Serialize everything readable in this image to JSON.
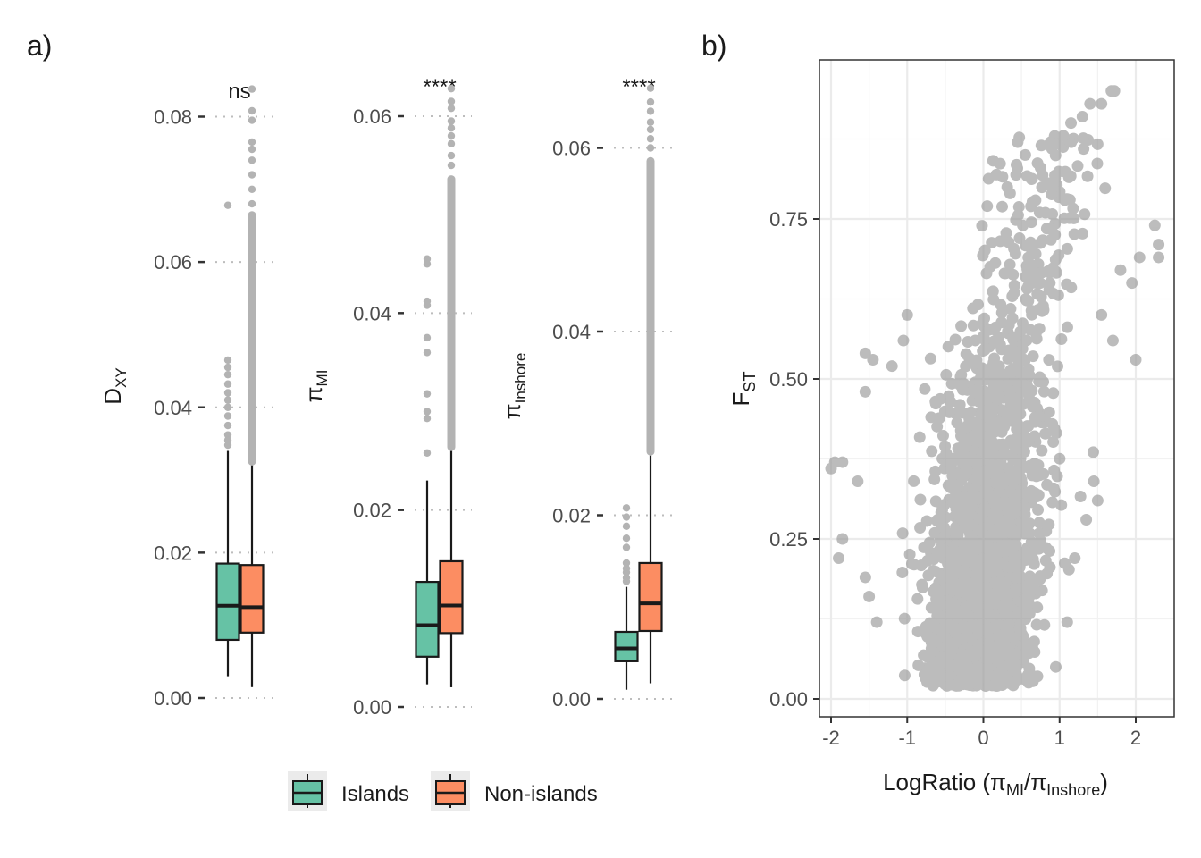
{
  "figure": {
    "panel_a_label": "a)",
    "panel_b_label": "b)"
  },
  "colors": {
    "islands": "#66c2a5",
    "non_islands": "#fc8d62",
    "outlier": "#b3b3b3",
    "scatter": "#999999",
    "grid": "#ebebeb"
  },
  "legend": {
    "items": [
      {
        "label": "Islands",
        "color": "#66c2a5"
      },
      {
        "label": "Non-islands",
        "color": "#fc8d62"
      }
    ]
  },
  "chart_data": [
    {
      "type": "box",
      "ylabel": "D",
      "ylabel_sub": "XY",
      "significance": "ns",
      "ylim": [
        0,
        0.084
      ],
      "yticks": [
        "0.00",
        "0.02",
        "0.04",
        "0.06",
        "0.08"
      ],
      "ytick_values": [
        0,
        0.02,
        0.04,
        0.06,
        0.08
      ],
      "series": [
        {
          "name": "Islands",
          "whisker_low": 0.003,
          "q1": 0.008,
          "median": 0.0127,
          "q3": 0.0185,
          "whisker_high": 0.034,
          "outliers": [
            0.0678,
            0.0465,
            0.0455,
            0.0445,
            0.0432,
            0.042,
            0.041,
            0.04,
            0.0388,
            0.0375,
            0.0362,
            0.0355,
            0.0348
          ]
        },
        {
          "name": "Non-islands",
          "whisker_low": 0.0015,
          "q1": 0.009,
          "median": 0.0125,
          "q3": 0.0183,
          "whisker_high": 0.032,
          "outliers": [
            0.0838,
            0.0808,
            0.0795,
            0.0765,
            0.0755,
            0.074,
            0.072,
            0.07,
            0.068
          ],
          "outlier_band": [
            0.032,
            0.067
          ]
        }
      ]
    },
    {
      "type": "box",
      "ylabel": "π",
      "ylabel_sub": "MI",
      "significance": "****",
      "ylim": [
        0,
        0.0605
      ],
      "yticks": [
        "0.00",
        "0.02",
        "0.04",
        "0.06"
      ],
      "ytick_values": [
        0,
        0.02,
        0.04,
        0.06
      ],
      "series": [
        {
          "name": "Islands",
          "whisker_low": 0.0023,
          "q1": 0.0051,
          "median": 0.0083,
          "q3": 0.0127,
          "whisker_high": 0.023,
          "outliers": [
            0.0455,
            0.045,
            0.0412,
            0.0408,
            0.0375,
            0.036,
            0.0318,
            0.03,
            0.0293,
            0.0258
          ]
        },
        {
          "name": "Non-islands",
          "whisker_low": 0.002,
          "q1": 0.0075,
          "median": 0.0103,
          "q3": 0.0148,
          "whisker_high": 0.026,
          "outliers": [
            0.0628,
            0.0615,
            0.0608,
            0.0595,
            0.0588,
            0.058,
            0.0572,
            0.056,
            0.055
          ],
          "outlier_band": [
            0.026,
            0.054
          ]
        }
      ]
    },
    {
      "type": "box",
      "ylabel": "π",
      "ylabel_sub": "Inshore",
      "significance": "****",
      "ylim": [
        0,
        0.0655
      ],
      "yticks": [
        "0.00",
        "0.02",
        "0.04",
        "0.06"
      ],
      "ytick_values": [
        0,
        0.02,
        0.04,
        0.06
      ],
      "series": [
        {
          "name": "Islands",
          "whisker_low": 0.001,
          "q1": 0.0041,
          "median": 0.0055,
          "q3": 0.0073,
          "whisker_high": 0.0122,
          "outliers": [
            0.0208,
            0.0198,
            0.0188,
            0.0175,
            0.0165,
            0.0148,
            0.0142,
            0.0138,
            0.0132,
            0.0128
          ]
        },
        {
          "name": "Non-islands",
          "whisker_low": 0.0017,
          "q1": 0.0074,
          "median": 0.0104,
          "q3": 0.0148,
          "whisker_high": 0.0265,
          "outliers": [
            0.0665,
            0.065,
            0.064,
            0.0628,
            0.062,
            0.061,
            0.06
          ],
          "outlier_band": [
            0.0265,
            0.059
          ]
        }
      ]
    },
    {
      "type": "scatter",
      "xlabel": "LogRatio (π",
      "xlabel_sub1": "MI",
      "xlabel_mid": "/π",
      "xlabel_sub2": "Inshore",
      "xlabel_end": ")",
      "ylabel": "F",
      "ylabel_sub": "ST",
      "xlim": [
        -2.15,
        2.5
      ],
      "ylim": [
        -0.03,
        0.98
      ],
      "xticks": [
        "-2",
        "-1",
        "0",
        "1",
        "2"
      ],
      "xtick_values": [
        -2,
        -1,
        0,
        1,
        2
      ],
      "yticks": [
        "0.00",
        "0.25",
        "0.50",
        "0.75"
      ],
      "ytick_values": [
        0,
        0.25,
        0.5,
        0.75
      ],
      "grid": true,
      "points_sample": [
        {
          "x": 1.72,
          "y": 0.95
        },
        {
          "x": 1.68,
          "y": 0.95
        },
        {
          "x": 1.55,
          "y": 0.93
        },
        {
          "x": 1.4,
          "y": 0.93
        },
        {
          "x": 1.3,
          "y": 0.91
        },
        {
          "x": 1.15,
          "y": 0.9
        },
        {
          "x": 1.05,
          "y": 0.88
        },
        {
          "x": 0.9,
          "y": 0.86
        },
        {
          "x": 0.45,
          "y": 0.87
        },
        {
          "x": 0.55,
          "y": 0.85
        },
        {
          "x": 0.75,
          "y": 0.83
        },
        {
          "x": 0.35,
          "y": 0.79
        },
        {
          "x": 0.05,
          "y": 0.77
        },
        {
          "x": 2.25,
          "y": 0.74
        },
        {
          "x": 2.3,
          "y": 0.71
        },
        {
          "x": 2.3,
          "y": 0.69
        },
        {
          "x": 2.05,
          "y": 0.69
        },
        {
          "x": 1.8,
          "y": 0.67
        },
        {
          "x": 1.95,
          "y": 0.65
        },
        {
          "x": 1.55,
          "y": 0.6
        },
        {
          "x": 1.7,
          "y": 0.56
        },
        {
          "x": 2.0,
          "y": 0.53
        },
        {
          "x": -1.0,
          "y": 0.6
        },
        {
          "x": -1.05,
          "y": 0.56
        },
        {
          "x": -1.2,
          "y": 0.52
        },
        {
          "x": -1.45,
          "y": 0.53
        },
        {
          "x": -1.55,
          "y": 0.54
        },
        {
          "x": -1.55,
          "y": 0.48
        },
        {
          "x": -1.85,
          "y": 0.37
        },
        {
          "x": -1.95,
          "y": 0.37
        },
        {
          "x": -2.0,
          "y": 0.36
        },
        {
          "x": -1.65,
          "y": 0.34
        },
        {
          "x": -1.85,
          "y": 0.25
        },
        {
          "x": -1.9,
          "y": 0.22
        },
        {
          "x": -1.55,
          "y": 0.19
        },
        {
          "x": -1.5,
          "y": 0.16
        },
        {
          "x": -1.4,
          "y": 0.12
        },
        {
          "x": 1.45,
          "y": 0.34
        },
        {
          "x": 1.5,
          "y": 0.31
        },
        {
          "x": 1.35,
          "y": 0.28
        },
        {
          "x": 1.2,
          "y": 0.22
        },
        {
          "x": 1.1,
          "y": 0.12
        },
        {
          "x": 0.95,
          "y": 0.05
        }
      ]
    }
  ]
}
